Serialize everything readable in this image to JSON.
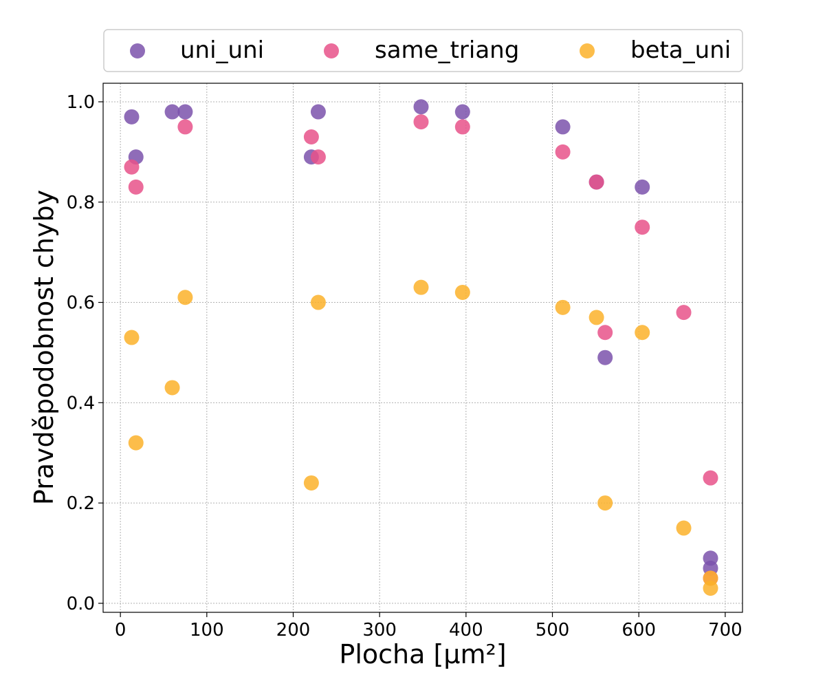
{
  "chart_data": {
    "type": "scatter",
    "xlabel": "Plocha [µm²]",
    "ylabel": "Pravděpodobnost chyby",
    "xlim": [
      -20,
      720
    ],
    "ylim": [
      -0.018,
      1.037
    ],
    "xticks": [
      "0",
      "100",
      "200",
      "300",
      "400",
      "500",
      "600",
      "700"
    ],
    "yticks": [
      "0.0",
      "0.2",
      "0.4",
      "0.6",
      "0.8",
      "1.0"
    ],
    "grid": true,
    "legend_position": "top (above plot, horizontal)",
    "series": [
      {
        "name": "uni_uni",
        "color": "#7b52ab",
        "points": [
          [
            13,
            0.97
          ],
          [
            18,
            0.89
          ],
          [
            60,
            0.98
          ],
          [
            75,
            0.98
          ],
          [
            221,
            0.89
          ],
          [
            229,
            0.98
          ],
          [
            348,
            0.99
          ],
          [
            396,
            0.98
          ],
          [
            512,
            0.95
          ],
          [
            551,
            0.84
          ],
          [
            561,
            0.49
          ],
          [
            604,
            0.83
          ],
          [
            683,
            0.09
          ],
          [
            683,
            0.07
          ]
        ]
      },
      {
        "name": "same_triang",
        "color": "#e8528a",
        "points": [
          [
            13,
            0.87
          ],
          [
            18,
            0.83
          ],
          [
            75,
            0.95
          ],
          [
            221,
            0.93
          ],
          [
            229,
            0.89
          ],
          [
            348,
            0.96
          ],
          [
            396,
            0.95
          ],
          [
            512,
            0.9
          ],
          [
            551,
            0.84
          ],
          [
            561,
            0.54
          ],
          [
            604,
            0.75
          ],
          [
            652,
            0.58
          ],
          [
            683,
            0.25
          ],
          [
            683,
            0.05
          ]
        ]
      },
      {
        "name": "beta_uni",
        "color": "#fbb22a",
        "points": [
          [
            13,
            0.53
          ],
          [
            18,
            0.32
          ],
          [
            60,
            0.43
          ],
          [
            75,
            0.61
          ],
          [
            221,
            0.24
          ],
          [
            229,
            0.6
          ],
          [
            348,
            0.63
          ],
          [
            396,
            0.62
          ],
          [
            512,
            0.59
          ],
          [
            551,
            0.57
          ],
          [
            561,
            0.2
          ],
          [
            604,
            0.54
          ],
          [
            652,
            0.15
          ],
          [
            683,
            0.05
          ],
          [
            683,
            0.03
          ]
        ]
      }
    ]
  }
}
